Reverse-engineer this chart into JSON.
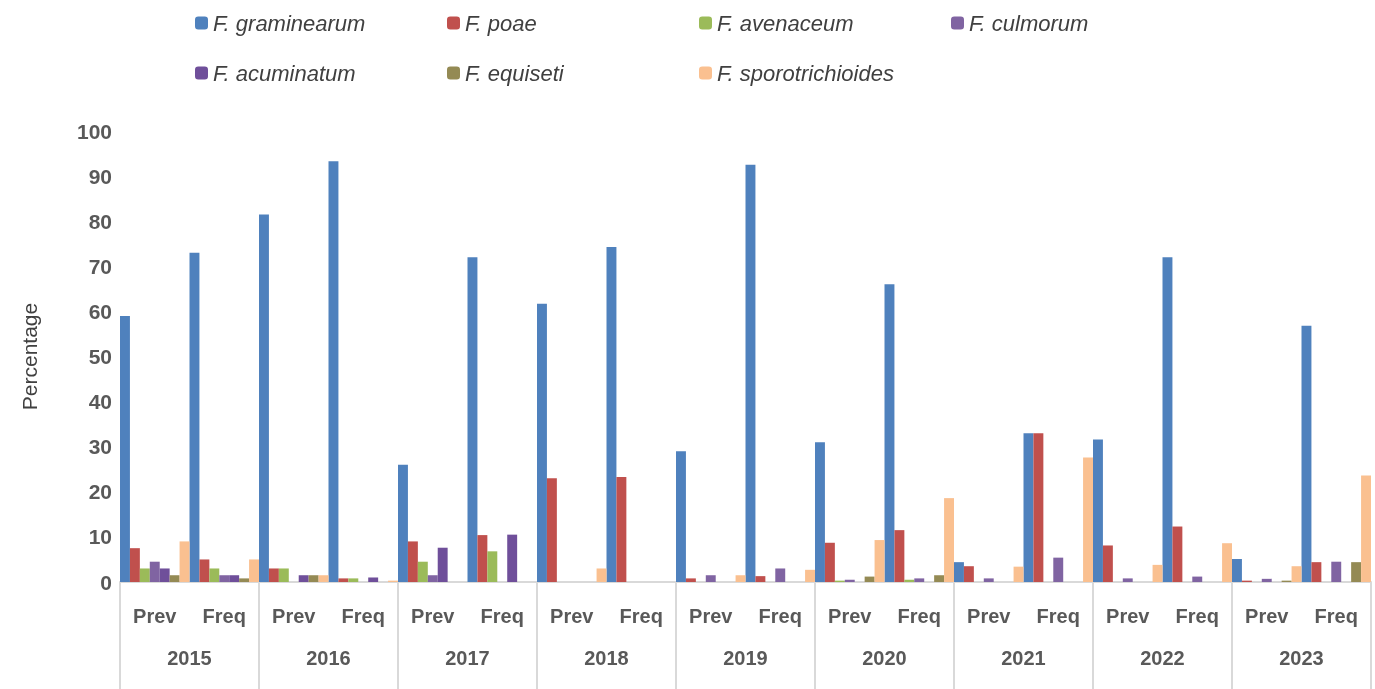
{
  "chart_data": {
    "type": "bar",
    "ylabel": "Percentage",
    "categories": [
      "Prev",
      "Freq",
      "Prev",
      "Freq",
      "Prev",
      "Freq",
      "Prev",
      "Freq",
      "Prev",
      "Freq",
      "Prev",
      "Freq",
      "Prev",
      "Freq",
      "Prev",
      "Freq",
      "Prev",
      "Freq"
    ],
    "annotations": [
      "2015",
      "2016",
      "2017",
      "2018",
      "2019",
      "2020",
      "2021",
      "2022",
      "2023"
    ],
    "series": [
      {
        "name": "F. graminearum",
        "color": "#4f81bd",
        "values": [
          59,
          73,
          81.5,
          93.3,
          26,
          72,
          61.7,
          74.3,
          29,
          92.5,
          31,
          66,
          4.4,
          33,
          31.6,
          72,
          5.1,
          56.8
        ]
      },
      {
        "name": "F. poae",
        "color": "#c0504d",
        "values": [
          7.5,
          5,
          3,
          0.8,
          9,
          10.4,
          23,
          23.3,
          0.8,
          1.3,
          8.7,
          11.5,
          3.5,
          33,
          8.1,
          12.3,
          0.3,
          4.4
        ]
      },
      {
        "name": "F. avenaceum",
        "color": "#9bbb59",
        "values": [
          3,
          3,
          3,
          0.8,
          4.5,
          6.8,
          0,
          0,
          0,
          0,
          0.3,
          0.5,
          0,
          0,
          0,
          0,
          0,
          0
        ]
      },
      {
        "name": "F. culmorum",
        "color": "#8064a2",
        "values": [
          4.5,
          1.5,
          0,
          0,
          1.5,
          0,
          0,
          0,
          1.5,
          3,
          0.5,
          0.8,
          0.8,
          5.4,
          0.8,
          1.2,
          0.7,
          4.5
        ]
      },
      {
        "name": "F. acuminatum",
        "color": "#6f4f9a",
        "values": [
          3,
          1.5,
          1.5,
          1,
          7.6,
          10.5,
          0,
          0,
          0,
          0,
          0,
          0,
          0,
          0,
          0,
          0,
          0,
          0
        ]
      },
      {
        "name": "F. equiseti",
        "color": "#948a54",
        "values": [
          1.5,
          0.8,
          1.5,
          0,
          0,
          0,
          0,
          0,
          0,
          0,
          1.2,
          1.5,
          0,
          0,
          0,
          0,
          0.3,
          4.4
        ]
      },
      {
        "name": "F. sporotrichioides",
        "color": "#fac090",
        "values": [
          9,
          5,
          1.5,
          0.3,
          0,
          0,
          3,
          0,
          1.5,
          2.7,
          9.3,
          18.6,
          3.4,
          27.6,
          3.8,
          8.6,
          3.5,
          23.6
        ]
      }
    ],
    "ylim": [
      0,
      100
    ],
    "yticks": [
      0,
      10,
      20,
      30,
      40,
      50,
      60,
      70,
      80,
      90,
      100
    ],
    "grid": false,
    "legend": "top"
  }
}
